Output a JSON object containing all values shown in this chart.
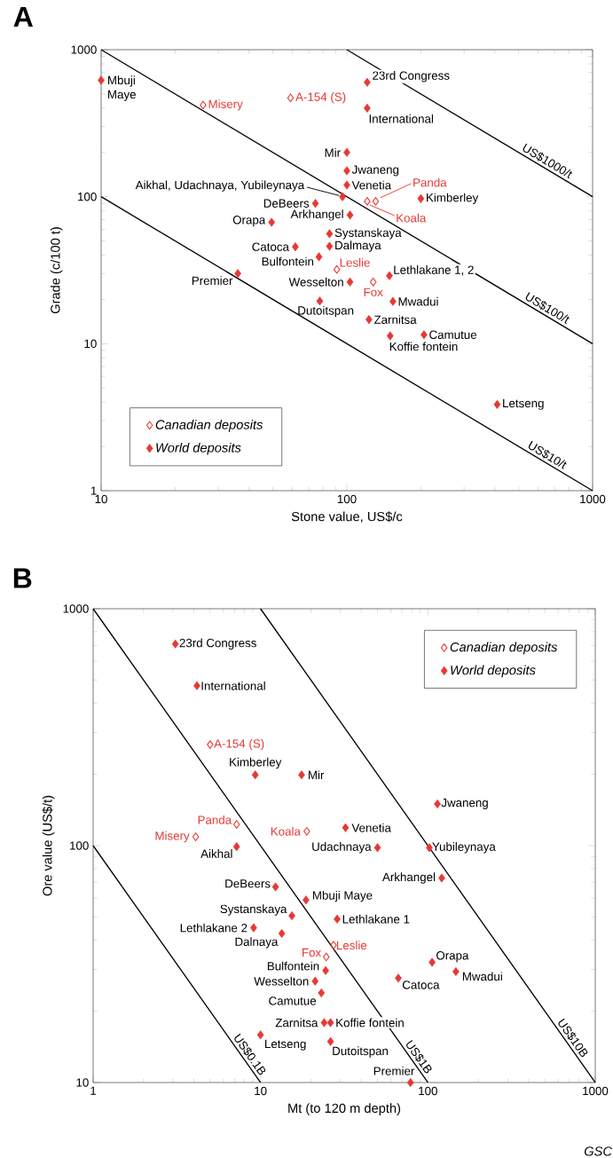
{
  "chart_data": [
    {
      "type": "scatter",
      "title": "A",
      "xlabel": "Stone value, US$/c",
      "ylabel": "Grade (c/100 t)",
      "log": "xy",
      "legend": "bottom left",
      "xlim": [
        10,
        1000
      ],
      "ylim": [
        1,
        1000
      ],
      "xticks": [
        10,
        100,
        1000
      ],
      "yticks": [
        1,
        10,
        100,
        1000
      ],
      "series": [
        {
          "name": "Canadian deposits",
          "marker": "diamond",
          "color": "#e53935",
          "x": [
            26,
            59,
            131,
            121,
            91,
            128
          ],
          "values": [
            420,
            470,
            93,
            93,
            32,
            26.3
          ]
        },
        {
          "name": "World deposits",
          "marker": "diamond",
          "color": "#e53935",
          "x": [
            10,
            121,
            121,
            100,
            100,
            100,
            96,
            200,
            74.5,
            49.4,
            103,
            85,
            61.7,
            85,
            77,
            36,
            103,
            149,
            77.6,
            154,
            123,
            150,
            206,
            409
          ],
          "values": [
            620,
            600,
            400,
            200,
            150,
            120,
            100,
            97,
            90,
            67,
            75,
            56,
            45.6,
            46,
            39,
            30,
            26.3,
            29,
            19.5,
            19.4,
            14.6,
            11.3,
            11.5,
            3.86
          ]
        },
        {
          "type": "line",
          "name": "US$1000/t",
          "color": "#000000",
          "x": [
            100,
            1000
          ],
          "values": [
            1000,
            100
          ]
        },
        {
          "type": "line",
          "name": "US$100/t",
          "color": "#000000",
          "x": [
            10,
            1000
          ],
          "values": [
            1000,
            10
          ]
        },
        {
          "type": "line",
          "name": "US$10/t",
          "color": "#000000",
          "x": [
            10,
            1000
          ],
          "values": [
            100,
            1
          ]
        }
      ],
      "annotations": [
        {
          "text": "Mbuji Maye",
          "x": 10,
          "y": 620
        },
        {
          "text": "Misery",
          "x": 26,
          "y": 420
        },
        {
          "text": "A-154 (S)",
          "x": 59,
          "y": 470
        },
        {
          "text": "23rd Congress",
          "x": 121,
          "y": 600
        },
        {
          "text": "International",
          "x": 121,
          "y": 400
        },
        {
          "text": "Mir",
          "x": 100,
          "y": 200
        },
        {
          "text": "Jwaneng",
          "x": 100,
          "y": 150
        },
        {
          "text": "Venetia",
          "x": 100,
          "y": 120
        },
        {
          "text": "Aikhal, Udachnaya, Yubileynaya",
          "x": 96,
          "y": 100
        },
        {
          "text": "Panda",
          "x": 131,
          "y": 93
        },
        {
          "text": "Koala",
          "x": 121,
          "y": 93
        },
        {
          "text": "Kimberley",
          "x": 200,
          "y": 97
        },
        {
          "text": "DeBeers",
          "x": 74.5,
          "y": 90
        },
        {
          "text": "Orapa",
          "x": 49.4,
          "y": 67
        },
        {
          "text": "Arkhangel",
          "x": 103,
          "y": 75
        },
        {
          "text": "Systanskaya",
          "x": 85,
          "y": 56
        },
        {
          "text": "Catoca",
          "x": 61.7,
          "y": 45.6
        },
        {
          "text": "Dalmaya",
          "x": 85,
          "y": 46
        },
        {
          "text": "Bulfontein",
          "x": 77,
          "y": 39
        },
        {
          "text": "Leslie",
          "x": 91,
          "y": 32
        },
        {
          "text": "Premier",
          "x": 36,
          "y": 30
        },
        {
          "text": "Wesselton",
          "x": 103,
          "y": 26.3
        },
        {
          "text": "Fox",
          "x": 128,
          "y": 26.3
        },
        {
          "text": "Lethlakane 1, 2",
          "x": 149,
          "y": 29
        },
        {
          "text": "Dutoitspan",
          "x": 77.6,
          "y": 19.5
        },
        {
          "text": "Mwadui",
          "x": 154,
          "y": 19.4
        },
        {
          "text": "Zarnitsa",
          "x": 123,
          "y": 14.6
        },
        {
          "text": "Koffie fontein",
          "x": 150,
          "y": 11.3
        },
        {
          "text": "Camutue",
          "x": 206,
          "y": 11.5
        },
        {
          "text": "Letseng",
          "x": 409,
          "y": 3.86
        }
      ]
    },
    {
      "type": "scatter",
      "title": "B",
      "xlabel": "Mt (to 120 m depth)",
      "ylabel": "Ore value (US$/t)",
      "log": "xy",
      "legend": "top right",
      "xlim": [
        1,
        1000
      ],
      "ylim": [
        10,
        1000
      ],
      "xticks": [
        1,
        10,
        100,
        1000
      ],
      "yticks": [
        10,
        100,
        1000
      ],
      "series": [
        {
          "name": "Canadian deposits",
          "marker": "diamond",
          "color": "#e53935",
          "x": [
            4.1,
            5.0,
            7.2,
            18.9,
            27.3,
            24.7
          ],
          "values": [
            109,
            267,
            123,
            115,
            38,
            33.9
          ]
        },
        {
          "name": "World deposits",
          "marker": "diamond",
          "color": "#e53935",
          "x": [
            3.1,
            4.17,
            9.3,
            17.6,
            114,
            32.2,
            7.2,
            50,
            102,
            121,
            12.3,
            18.7,
            15.4,
            28.7,
            9.1,
            13.4,
            24.5,
            21.2,
            23.1,
            106,
            147,
            66.6,
            24,
            26.2,
            10,
            26.2,
            78.7
          ],
          "values": [
            710,
            473,
            199,
            199,
            150,
            119,
            99,
            98,
            98,
            73,
            67,
            59,
            50.6,
            49,
            45,
            42.6,
            29.7,
            26.8,
            23.9,
            32.2,
            29.4,
            27.6,
            17.9,
            17.9,
            15.9,
            14.9,
            10
          ]
        },
        {
          "type": "line",
          "name": "US$0.1B",
          "color": "#000000",
          "x": [
            1,
            10
          ],
          "values": [
            100,
            10
          ]
        },
        {
          "type": "line",
          "name": "US$1B",
          "color": "#000000",
          "x": [
            1,
            100
          ],
          "values": [
            1000,
            10
          ]
        },
        {
          "type": "line",
          "name": "US$10B",
          "color": "#000000",
          "x": [
            10,
            1000
          ],
          "values": [
            1000,
            10
          ]
        }
      ],
      "annotations": [
        {
          "text": "23rd Congress",
          "x": 3.1,
          "y": 710
        },
        {
          "text": "International",
          "x": 4.17,
          "y": 473
        },
        {
          "text": "A-154 (S)",
          "x": 5.0,
          "y": 267
        },
        {
          "text": "Kimberley",
          "x": 9.3,
          "y": 199
        },
        {
          "text": "Mir",
          "x": 17.6,
          "y": 199
        },
        {
          "text": "Jwaneng",
          "x": 114,
          "y": 150
        },
        {
          "text": "Panda",
          "x": 7.2,
          "y": 123
        },
        {
          "text": "Misery",
          "x": 4.1,
          "y": 109
        },
        {
          "text": "Koala",
          "x": 18.9,
          "y": 115
        },
        {
          "text": "Venetia",
          "x": 32.2,
          "y": 119
        },
        {
          "text": "Aikhal",
          "x": 7.2,
          "y": 99
        },
        {
          "text": "Udachnaya",
          "x": 50,
          "y": 98
        },
        {
          "text": "Yubileynaya",
          "x": 102,
          "y": 98
        },
        {
          "text": "Arkhangel",
          "x": 121,
          "y": 73
        },
        {
          "text": "DeBeers",
          "x": 12.3,
          "y": 67
        },
        {
          "text": "Mbuji Maye",
          "x": 18.7,
          "y": 59
        },
        {
          "text": "Systanskaya",
          "x": 15.4,
          "y": 50.6
        },
        {
          "text": "Lethlakane 1",
          "x": 28.7,
          "y": 49
        },
        {
          "text": "Lethlakane 2",
          "x": 9.1,
          "y": 45
        },
        {
          "text": "Dalnaya",
          "x": 13.4,
          "y": 42.6
        },
        {
          "text": "Leslie",
          "x": 27.3,
          "y": 38
        },
        {
          "text": "Fox",
          "x": 24.7,
          "y": 33.9
        },
        {
          "text": "Bulfontein",
          "x": 24.5,
          "y": 29.7
        },
        {
          "text": "Wesselton",
          "x": 21.2,
          "y": 26.8
        },
        {
          "text": "Camutue",
          "x": 23.1,
          "y": 23.9
        },
        {
          "text": "Orapa",
          "x": 106,
          "y": 32.2
        },
        {
          "text": "Mwadui",
          "x": 147,
          "y": 29.4
        },
        {
          "text": "Catoca",
          "x": 66.6,
          "y": 27.6
        },
        {
          "text": "Zarnitsa",
          "x": 24,
          "y": 17.9
        },
        {
          "text": "Koffie fontein",
          "x": 26.2,
          "y": 17.9
        },
        {
          "text": "Letseng",
          "x": 10,
          "y": 15.9
        },
        {
          "text": "Dutoitspan",
          "x": 26.2,
          "y": 14.9
        },
        {
          "text": "Premier",
          "x": 78.7,
          "y": 10
        },
        "GSC"
      ]
    }
  ]
}
